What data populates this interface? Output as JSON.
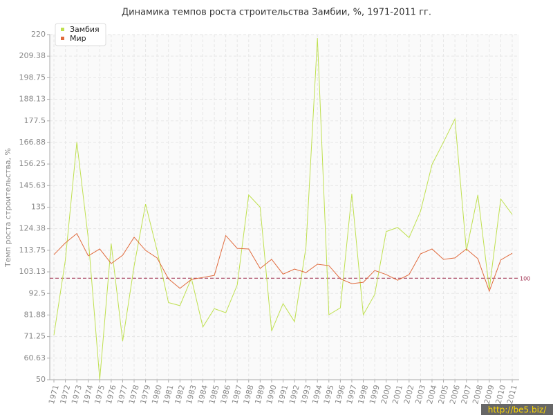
{
  "chart_data": {
    "type": "line",
    "title": "Динамика темпов роста строительства Замбии, %, 1971-2011 гг.",
    "y_label": "Темп роста строительства, %",
    "watermark": "http://be5.biz/",
    "categories": [
      "1971",
      "1972",
      "1973",
      "1974",
      "1975",
      "1976",
      "1977",
      "1978",
      "1979",
      "1980",
      "1981",
      "1982",
      "1983",
      "1984",
      "1985",
      "1986",
      "1987",
      "1988",
      "1989",
      "1990",
      "1991",
      "1992",
      "1993",
      "1994",
      "1995",
      "1996",
      "1997",
      "1998",
      "1999",
      "2000",
      "2001",
      "2002",
      "2003",
      "2004",
      "2005",
      "2006",
      "2007",
      "2008",
      "2009",
      "2010",
      "2011"
    ],
    "series": [
      {
        "name": "Замбия",
        "color": "#bfe04f",
        "values": [
          72,
          109,
          167,
          119.5,
          50,
          117,
          69,
          106,
          136.5,
          113.7,
          88,
          86.5,
          100,
          76,
          85,
          83,
          96.7,
          141,
          135,
          74,
          87.5,
          78.6,
          115.4,
          218.3,
          82,
          85.4,
          141.6,
          82,
          92,
          123,
          125,
          120,
          133,
          156,
          167,
          178.4,
          113.4,
          141,
          94.6,
          139,
          131.4
        ]
      },
      {
        "name": "Мир",
        "color": "#e06a3c",
        "values": [
          111.6,
          117.4,
          122,
          111,
          114.4,
          107.2,
          111.3,
          120.2,
          113.7,
          110,
          99.7,
          95,
          99.4,
          100.4,
          101.4,
          121,
          114.7,
          114.4,
          104.8,
          109.3,
          102,
          104.5,
          102.8,
          106.9,
          106.2,
          99.7,
          97.3,
          98,
          103.8,
          101.8,
          99,
          101.8,
          112,
          114.4,
          109.3,
          110,
          114.4,
          109.6,
          93.6,
          109,
          112.3
        ]
      }
    ],
    "reference_line": {
      "value": 100,
      "color": "#a03050"
    },
    "ylim": [
      50,
      220
    ],
    "yticks": [
      50,
      60.63,
      71.25,
      81.88,
      92.5,
      103.13,
      113.75,
      124.38,
      135,
      145.63,
      156.25,
      166.88,
      177.5,
      188.13,
      198.75,
      209.38,
      220
    ],
    "grid": true,
    "legend": "top-left"
  }
}
